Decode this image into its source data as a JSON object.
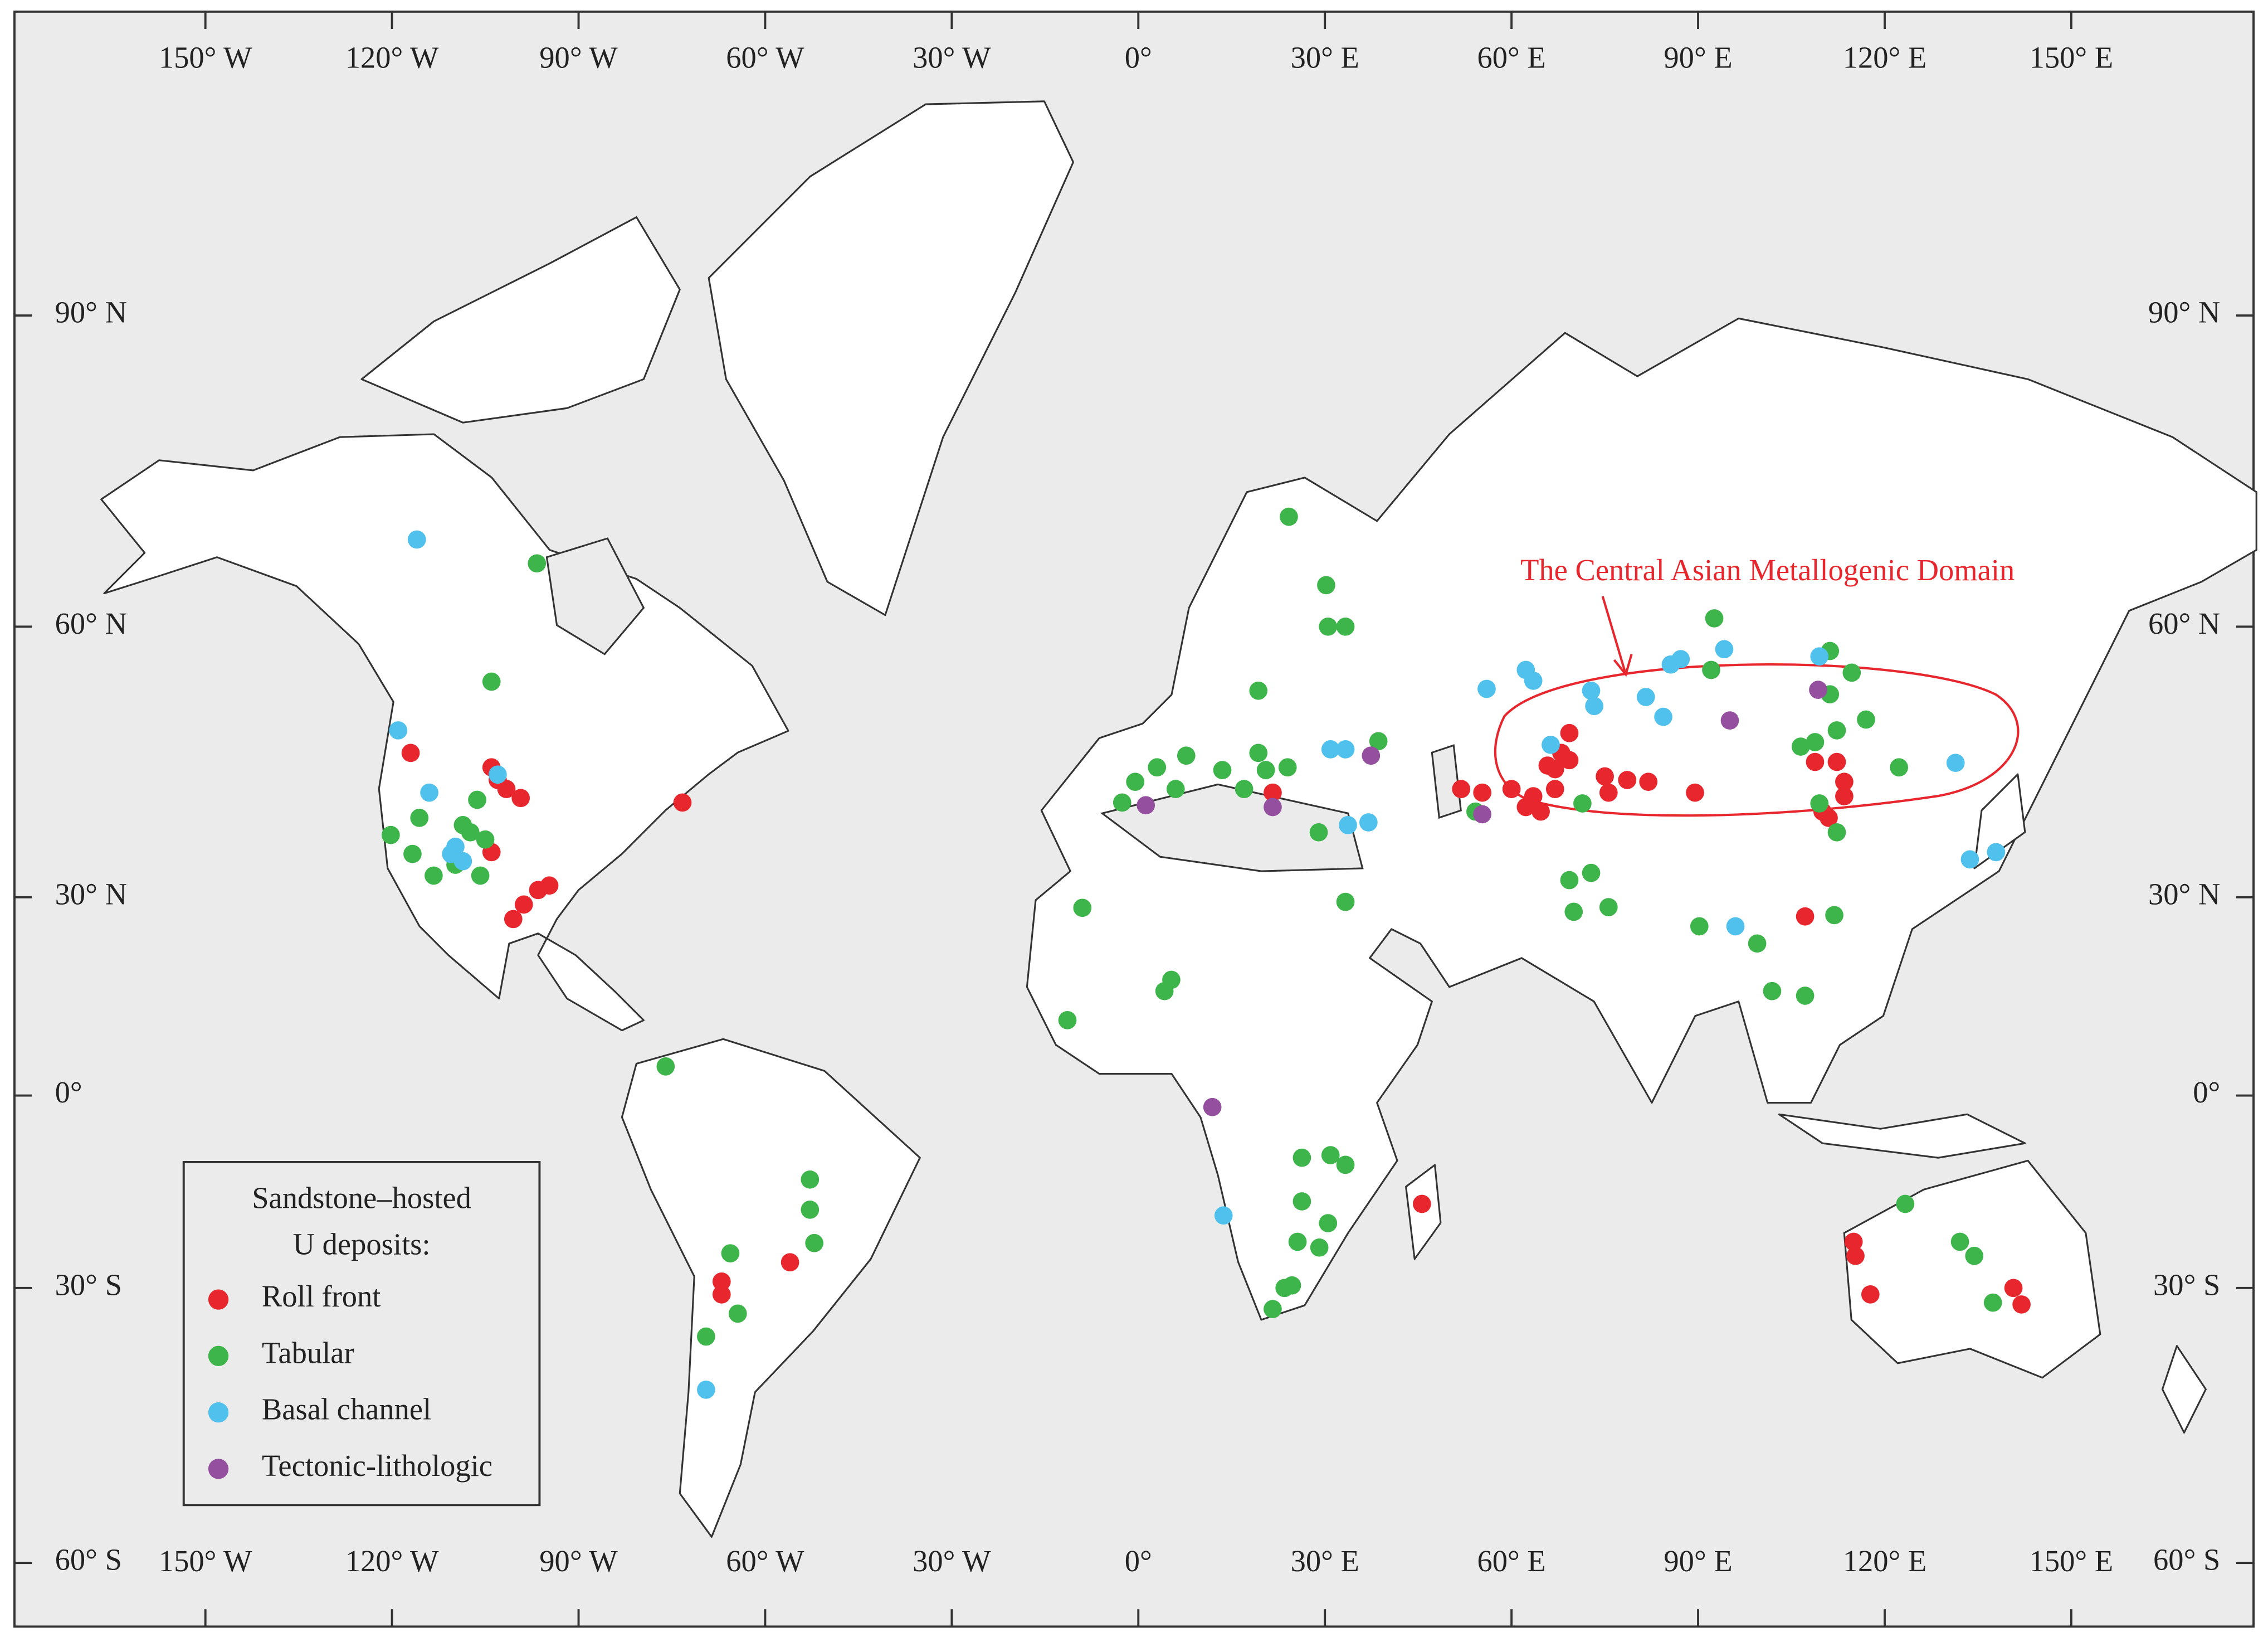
{
  "map": {
    "annotation": "The Central Asian Metallogenic Domain",
    "legend_title": [
      "Sandstone–hosted",
      "U deposits:"
    ],
    "xticks": [
      {
        "value": -150,
        "label": "150° W"
      },
      {
        "value": -120,
        "label": "120° W"
      },
      {
        "value": -90,
        "label": "90° W"
      },
      {
        "value": -60,
        "label": "60° W"
      },
      {
        "value": -30,
        "label": "30° W"
      },
      {
        "value": 0,
        "label": "0°"
      },
      {
        "value": 30,
        "label": "30° E"
      },
      {
        "value": 60,
        "label": "60° E"
      },
      {
        "value": 90,
        "label": "90° E"
      },
      {
        "value": 120,
        "label": "120° E"
      },
      {
        "value": 150,
        "label": "150° E"
      }
    ],
    "yticks": [
      {
        "value": -60,
        "label": "60° S"
      },
      {
        "value": -30,
        "label": "30° S"
      },
      {
        "value": 0,
        "label": "0°"
      },
      {
        "value": 30,
        "label": "30° N"
      },
      {
        "value": 60,
        "label": "60° N"
      },
      {
        "value": 90,
        "label": "90° N"
      }
    ],
    "deposit_types": [
      {
        "name": "Roll front",
        "color": "#e8262d",
        "lon": [
          -117,
          -104,
          -101.6,
          -99.3,
          -103,
          -104,
          -100.5,
          -98.8,
          -96.5,
          -94.7,
          -73.3,
          -56,
          -67,
          -67,
          21.6,
          51.9,
          55.3,
          60,
          62.3,
          64.7,
          65.8,
          67,
          68,
          69.3,
          75,
          75.6,
          78.6,
          82,
          89.5,
          69.3,
          67,
          63.5,
          108.8,
          112.3,
          113.5,
          110,
          113.5,
          111,
          107.2,
          45.6,
          115,
          115.3,
          117.7,
          140.7,
          142
        ],
        "lat": [
          46,
          44.4,
          42,
          41,
          43,
          35,
          26.7,
          28.9,
          30.8,
          31.3,
          40.5,
          -26,
          -29,
          -30.7,
          41.6,
          42,
          41.6,
          42,
          40,
          39.5,
          44.6,
          42,
          46,
          48.2,
          43.4,
          41.6,
          43,
          42.8,
          41.6,
          45.2,
          44.2,
          41.2,
          45,
          45,
          42.8,
          39.5,
          41.2,
          38.8,
          27.1,
          -16.9,
          -22.8,
          -25,
          -30.7,
          -30,
          -31.8
        ]
      },
      {
        "name": "Tabular",
        "color": "#3db54a",
        "lon": [
          -96.7,
          -104,
          -120.2,
          -115.6,
          -113.3,
          -109.8,
          -107.4,
          -106.3,
          -105.8,
          -108.6,
          -105,
          -116.7,
          -76,
          -52.8,
          -52.8,
          -52.1,
          -65.6,
          -64.4,
          -69.5,
          24.2,
          30.2,
          30.5,
          33.3,
          19.3,
          -2.6,
          -0.5,
          3,
          7.7,
          13.5,
          19.3,
          24,
          6,
          17,
          20.5,
          29,
          33.3,
          38.6,
          -9,
          -11.4,
          5.3,
          4.2,
          26.3,
          30.9,
          33.3,
          26.3,
          30.5,
          25.6,
          29.1,
          23.5,
          21.6,
          24.7,
          54.2,
          69.3,
          72.8,
          75.6,
          70,
          71.4,
          92.6,
          92.1,
          90.2,
          99.5,
          101.9,
          107.2,
          111.9,
          106.5,
          108.8,
          111.2,
          114.7,
          117,
          112.3,
          111.2,
          122.3,
          112.3,
          109.5,
          123.3,
          132.1,
          134.4,
          137.4
        ],
        "lat": [
          66.1,
          53.9,
          36.9,
          38.8,
          32.4,
          33.6,
          37.2,
          40.8,
          32.4,
          38,
          36.4,
          34.8,
          4.4,
          -13.1,
          -17.8,
          -23,
          -24.6,
          -32.8,
          -35.3,
          70.6,
          64,
          60,
          60,
          52.9,
          40.5,
          42.8,
          44.4,
          45.7,
          44.1,
          46,
          44.4,
          42,
          42,
          44.1,
          37.2,
          29.3,
          47.3,
          28.4,
          11.4,
          17.5,
          15.8,
          -9.7,
          -9.3,
          -10.8,
          -16.5,
          -19.9,
          -22.8,
          -23.7,
          -30,
          -32.3,
          -29.6,
          39.5,
          31.9,
          32.7,
          28.5,
          27.8,
          40.4,
          60.8,
          55.2,
          25.6,
          23,
          15.8,
          15.1,
          27.3,
          46.7,
          47.2,
          57.3,
          54.9,
          49.7,
          48.5,
          52.5,
          44.4,
          37.2,
          40.4,
          -16.9,
          -22.8,
          -25,
          -31.6
        ]
      },
      {
        "name": "Basal channel",
        "color": "#4fc1ec",
        "lon": [
          -116,
          -119,
          -114,
          -109.8,
          -108.6,
          -110.5,
          -103,
          -69.5,
          13.7,
          30.9,
          33.3,
          33.7,
          37,
          56,
          62.3,
          63.5,
          66.3,
          72.8,
          73.3,
          81.6,
          84.4,
          85.6,
          87.2,
          94.2,
          96,
          109.5,
          131.4,
          133.7,
          137.9
        ],
        "lat": [
          68.4,
          48.5,
          41.6,
          35.6,
          34,
          34.8,
          43.6,
          -41.1,
          -18.7,
          46.4,
          46.4,
          38,
          38.3,
          53.1,
          55.2,
          54,
          46.9,
          52.9,
          51.2,
          52.2,
          50,
          55.8,
          56.4,
          57.5,
          25.6,
          56.7,
          44.9,
          34.2,
          35
        ]
      },
      {
        "name": "Tectonic-lithologic",
        "color": "#94509f",
        "lon": [
          1.2,
          21.6,
          37.4,
          55.3,
          95.1,
          109.3,
          11.9
        ],
        "lat": [
          40.2,
          40,
          45.7,
          39.2,
          49.6,
          53,
          -1.8
        ]
      }
    ]
  }
}
